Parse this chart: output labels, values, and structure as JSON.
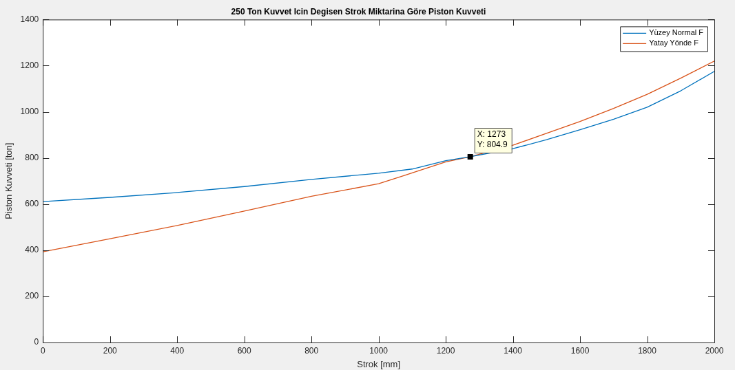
{
  "chart_data": {
    "type": "line",
    "title": "250 Ton Kuvvet Icin Degisen Strok Miktarina Göre Piston Kuvveti",
    "xlabel": "Strok [mm]",
    "ylabel": "Piston Kuvveti [ton]",
    "x": [
      0,
      200,
      400,
      600,
      800,
      1000,
      1100,
      1200,
      1273,
      1400,
      1500,
      1600,
      1700,
      1800,
      1900,
      2000
    ],
    "series": [
      {
        "name": "Yüzey Normal F",
        "color": "#0072bd",
        "values": [
          611,
          629,
          650,
          676,
          707,
          734,
          752,
          788,
          805,
          840,
          879,
          922,
          968,
          1020,
          1091,
          1175
        ]
      },
      {
        "name": "Yatay Yönde F",
        "color": "#d95319",
        "values": [
          393,
          450,
          507,
          570,
          634,
          688,
          735,
          783,
          805,
          855,
          907,
          958,
          1015,
          1076,
          1146,
          1220
        ]
      }
    ],
    "xlim": [
      0,
      2000
    ],
    "xticks": [
      0,
      200,
      400,
      600,
      800,
      1000,
      1200,
      1400,
      1600,
      1800,
      2000
    ],
    "ylim": [
      0,
      1400
    ],
    "yticks": [
      0,
      200,
      400,
      600,
      800,
      1000,
      1200,
      1400
    ],
    "annotations": [
      {
        "text": "X: 1273\nY: 804.9",
        "x": 1273,
        "y": 804.9
      }
    ],
    "grid": false,
    "legend": "top right",
    "marker": "none",
    "line_style": "solid"
  }
}
